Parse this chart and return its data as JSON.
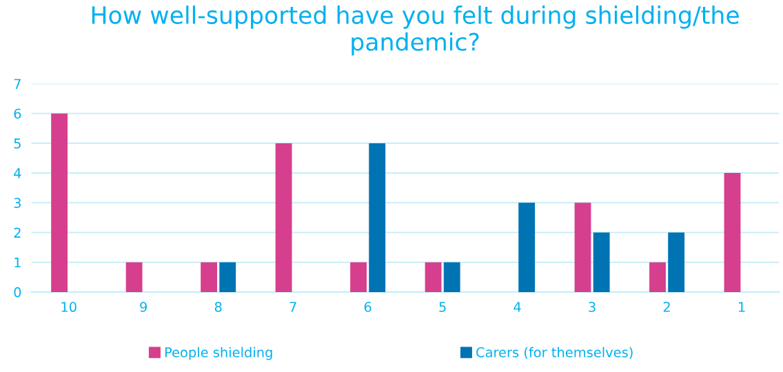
{
  "chart_data": {
    "type": "bar",
    "title": "How well-supported have you felt during shielding/the pandemic?",
    "categories": [
      "10",
      "9",
      "8",
      "7",
      "6",
      "5",
      "4",
      "3",
      "2",
      "1"
    ],
    "series": [
      {
        "name": "People shielding",
        "color": "#d63f8d",
        "values": [
          6,
          1,
          1,
          5,
          1,
          1,
          0,
          3,
          1,
          4
        ]
      },
      {
        "name": "Carers (for themselves)",
        "color": "#0073b3",
        "values": [
          0,
          0,
          1,
          0,
          5,
          1,
          3,
          2,
          2,
          0
        ]
      }
    ],
    "ylim": [
      0,
      7
    ],
    "yticks": [
      0,
      1,
      2,
      3,
      4,
      5,
      6,
      7
    ],
    "grid": "y",
    "legend": "bottom"
  }
}
